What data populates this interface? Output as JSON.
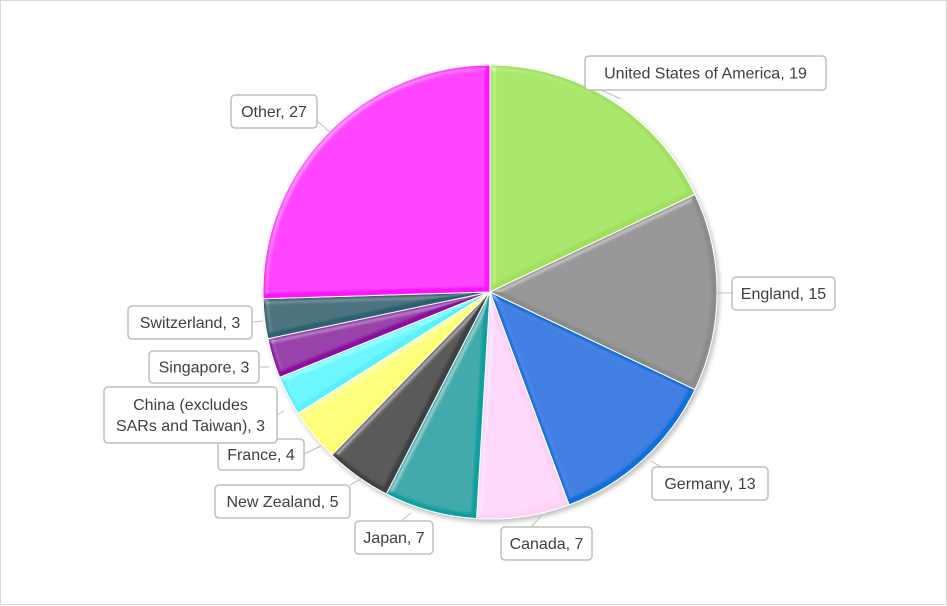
{
  "chart_data": {
    "type": "pie",
    "categories": [
      "United States of America",
      "England",
      "Germany",
      "Canada",
      "Japan",
      "New Zealand",
      "France",
      "China (excludes SARs and Taiwan)",
      "Singapore",
      "Switzerland",
      "Other"
    ],
    "values": [
      19,
      15,
      13,
      7,
      7,
      5,
      4,
      3,
      3,
      3,
      27
    ],
    "colors": [
      "#a0e05a",
      "#8c8c8c",
      "#0a6fdc",
      "#ffd2f5",
      "#0fa0a0",
      "#404040",
      "#ffff6e",
      "#5af0ff",
      "#8c0aa0",
      "#2a6270",
      "#ff14ff"
    ],
    "labels": [
      [
        "United States of America, 19"
      ],
      [
        "England, 15"
      ],
      [
        "Germany, 13"
      ],
      [
        "Canada, 7"
      ],
      [
        "Japan, 7"
      ],
      [
        "New Zealand, 5"
      ],
      [
        "France, 4"
      ],
      [
        "China (excludes",
        "SARs and Taiwan), 3"
      ],
      [
        "Singapore, 3"
      ],
      [
        "Switzerland, 3"
      ],
      [
        "Other, 27"
      ]
    ],
    "start_angle": "12 o'clock",
    "direction": "clockwise",
    "legend": "none",
    "data_labels": "callouts with category name and value"
  }
}
